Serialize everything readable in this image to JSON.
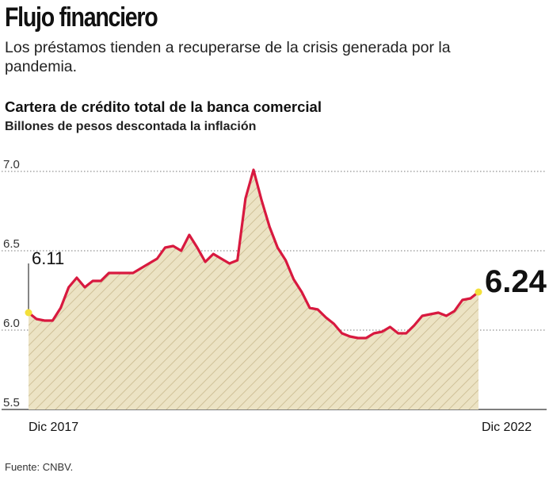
{
  "header": {
    "title": "Flujo financiero",
    "subtitle": "Los préstamos tienden a recuperarse de la crisis generada por la pandemia."
  },
  "chart_data": {
    "type": "area",
    "title": "Cartera de crédito total de la banca comercial",
    "ylabel": "Billones de pesos descontada la inflación",
    "ylim": [
      5.5,
      7.0
    ],
    "y_ticks": [
      "7.0",
      "6.5",
      "6.0",
      "5.5"
    ],
    "x_labels": {
      "start": "Dic 2017",
      "end": "Dic 2022"
    },
    "grid": "horizontal dotted",
    "series": [
      {
        "name": "Cartera de crédito total",
        "color": "#d8193f",
        "fill": "#ece3c4",
        "values": [
          6.11,
          6.07,
          6.06,
          6.06,
          6.14,
          6.27,
          6.33,
          6.27,
          6.31,
          6.31,
          6.36,
          6.36,
          6.36,
          6.36,
          6.39,
          6.42,
          6.45,
          6.52,
          6.53,
          6.5,
          6.6,
          6.52,
          6.43,
          6.48,
          6.45,
          6.42,
          6.44,
          6.83,
          7.01,
          6.82,
          6.65,
          6.52,
          6.44,
          6.32,
          6.24,
          6.14,
          6.13,
          6.08,
          6.04,
          5.98,
          5.96,
          5.95,
          5.95,
          5.98,
          5.99,
          6.02,
          5.98,
          5.98,
          6.03,
          6.09,
          6.1,
          6.11,
          6.09,
          6.12,
          6.19,
          6.2,
          6.24
        ]
      }
    ],
    "annotations": {
      "start_value": "6.11",
      "end_value": "6.24"
    }
  },
  "colors": {
    "line": "#d8193f",
    "area_fill": "#ece3c4",
    "hatch": "#c9b98e",
    "highlight": "#f3e03a"
  },
  "footer": {
    "source": "Fuente: CNBV."
  }
}
